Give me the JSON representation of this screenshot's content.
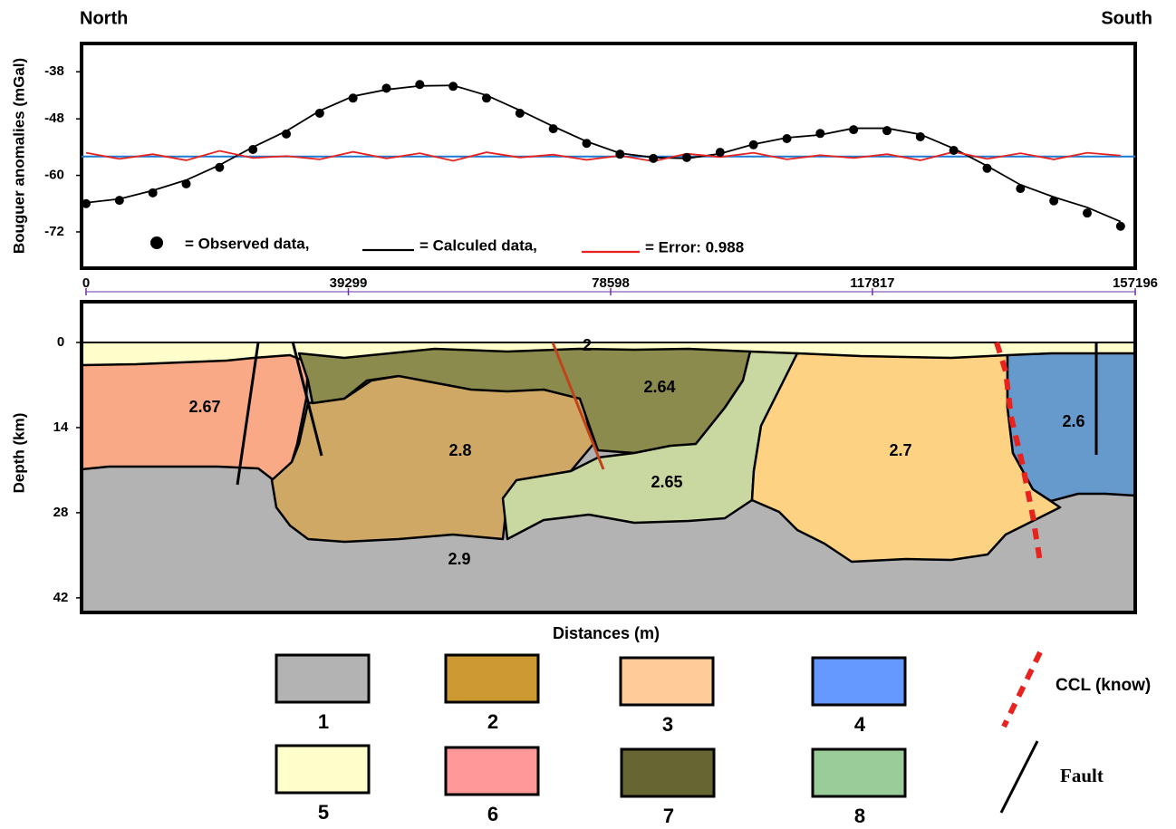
{
  "chart_data": [
    {
      "type": "line",
      "annotations": [
        "North",
        "South"
      ],
      "y_label": "Bouguer anomalies (mGal)",
      "x": [
        0,
        5000,
        10000,
        15000,
        20000,
        25000,
        30000,
        35000,
        40000,
        45000,
        50000,
        55000,
        60000,
        65000,
        70000,
        75000,
        80000,
        85000,
        90000,
        95000,
        100000,
        105000,
        110000,
        115000,
        120000,
        125000,
        130000,
        135000,
        140000,
        145000,
        150000,
        155000
      ],
      "series": [
        {
          "name": "= Observed data,",
          "color": "#000000",
          "marker": "dot",
          "values": [
            -66,
            -65.3,
            -63.7,
            -61.8,
            -58.3,
            -54.5,
            -51.2,
            -46.8,
            -43.6,
            -41.5,
            -40.7,
            -41.1,
            -43.6,
            -46.8,
            -50.1,
            -53.2,
            -55.5,
            -56.4,
            -56.2,
            -55.1,
            -53.5,
            -52.2,
            -51.1,
            -50.3,
            -50.5,
            -51.8,
            -54.7,
            -58.5,
            -62.8,
            -65.4,
            -68,
            -70.8
          ]
        },
        {
          "name": "= Calculed data,",
          "color": "#000000",
          "marker": "line",
          "values": [
            -65.8,
            -65.0,
            -63.2,
            -61.0,
            -57.8,
            -54.0,
            -50.6,
            -46.3,
            -43.2,
            -41.8,
            -41.0,
            -40.9,
            -43.0,
            -46.2,
            -49.6,
            -52.8,
            -55.3,
            -56.2,
            -56.4,
            -55.4,
            -53.4,
            -52.0,
            -51.4,
            -50.0,
            -50.0,
            -51.3,
            -54.3,
            -58.0,
            -62.0,
            -64.6,
            -66.8,
            -69.8
          ]
        },
        {
          "name": "= Error: 0.988",
          "color": "#e8221e",
          "marker": "line",
          "values": [
            -55.2,
            -56.5,
            -55.5,
            -56.8,
            -54.8,
            -56.3,
            -55.9,
            -56.6,
            -55.0,
            -56.4,
            -55.3,
            -56.9,
            -55.1,
            -56.2,
            -55.6,
            -56.7,
            -55.8,
            -57.0,
            -55.4,
            -56.1,
            -55.2,
            -56.6,
            -55.7,
            -56.3,
            -55.5,
            -56.8,
            -55.0,
            -56.5,
            -55.3,
            -56.6,
            -55.2,
            -55.8
          ]
        }
      ],
      "reference_line": {
        "value": -56,
        "color": "#1f7ad6"
      },
      "xlim": [
        0,
        157196
      ],
      "xticks": [
        0,
        39299,
        78598,
        117817,
        157196
      ],
      "ylim": [
        -79.7,
        -32
      ],
      "yticks": [
        -38,
        -48,
        -60,
        -72
      ]
    },
    {
      "type": "cross-section",
      "y_label": "Depth (km)",
      "x_label": "Distances (m)",
      "ylim": [
        -6.7,
        44.4
      ],
      "yticks": [
        0,
        14,
        28,
        42
      ],
      "bodies": [
        "2.67",
        "2.8",
        "2.64",
        "2.65",
        "2.7",
        "2.6",
        "2.9",
        "2"
      ]
    }
  ],
  "legend": {
    "items": [
      {
        "label": "1",
        "color": "#b3b3b3"
      },
      {
        "label": "2",
        "color": "#cc9933"
      },
      {
        "label": "3",
        "color": "#ffcc99"
      },
      {
        "label": "4",
        "color": "#6699ff"
      },
      {
        "label": "5",
        "color": "#ffffcc"
      },
      {
        "label": "6",
        "color": "#ff9999"
      },
      {
        "label": "7",
        "color": "#666633"
      },
      {
        "label": "8",
        "color": "#99cc99"
      }
    ],
    "ccl": "CCL (know)",
    "fault": "Fault"
  }
}
